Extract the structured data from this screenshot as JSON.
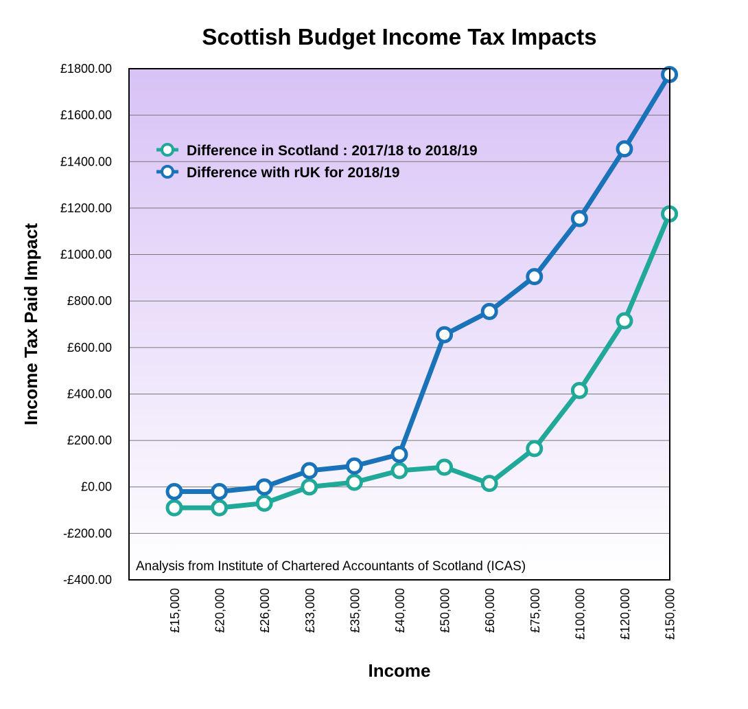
{
  "chart_data": {
    "type": "line",
    "title": "Scottish Budget Income Tax Impacts",
    "xlabel": "Income",
    "ylabel": "Income Tax Paid Impact",
    "categories": [
      "£15,000",
      "£20,000",
      "£26,000",
      "£33,000",
      "£35,000",
      "£40,000",
      "£50,000",
      "£60,000",
      "£75,000",
      "£100,000",
      "£120,000",
      "£150,000"
    ],
    "ylim": [
      -400,
      1800
    ],
    "yticks": [
      -400,
      -200,
      0,
      200,
      400,
      600,
      800,
      1000,
      1200,
      1400,
      1600,
      1800
    ],
    "ytick_labels": [
      "-£400.00",
      "-£200.00",
      "£0.00",
      "£200.00",
      "£400.00",
      "£600.00",
      "£800.00",
      "£1000.00",
      "£1200.00",
      "£1400.00",
      "£1600.00",
      "£1800.00"
    ],
    "grid": true,
    "legend": "top-left",
    "series": [
      {
        "name": "Difference in Scotland : 2017/18 to 2018/19",
        "color": "#20a898",
        "values": [
          -90,
          -90,
          -70,
          0,
          20,
          70,
          85,
          15,
          165,
          415,
          715,
          1175
        ]
      },
      {
        "name": "Difference with rUK for 2018/19",
        "color": "#1a73b8",
        "values": [
          -20,
          -20,
          0,
          70,
          90,
          140,
          655,
          755,
          905,
          1155,
          1455,
          1775
        ]
      }
    ],
    "annotation": "Analysis from Institute of Chartered Accountants of Scotland (ICAS)",
    "background_gradient": [
      "#d8c2f6",
      "#ffffff"
    ]
  }
}
